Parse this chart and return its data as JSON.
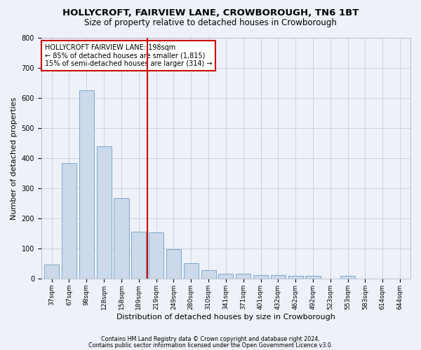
{
  "title": "HOLLYCROFT, FAIRVIEW LANE, CROWBOROUGH, TN6 1BT",
  "subtitle": "Size of property relative to detached houses in Crowborough",
  "xlabel": "Distribution of detached houses by size in Crowborough",
  "ylabel": "Number of detached properties",
  "categories": [
    "37sqm",
    "67sqm",
    "98sqm",
    "128sqm",
    "158sqm",
    "189sqm",
    "219sqm",
    "249sqm",
    "280sqm",
    "310sqm",
    "341sqm",
    "371sqm",
    "401sqm",
    "432sqm",
    "462sqm",
    "492sqm",
    "523sqm",
    "553sqm",
    "583sqm",
    "614sqm",
    "644sqm"
  ],
  "values": [
    47,
    383,
    625,
    440,
    268,
    155,
    153,
    97,
    52,
    28,
    15,
    15,
    11,
    11,
    10,
    9,
    0,
    8,
    0,
    0,
    0
  ],
  "bar_color": "#ccd9ea",
  "bar_edge_color": "#6b9ec8",
  "bar_width": 0.85,
  "vline_x": 6.0,
  "vline_color": "#cc0000",
  "annotation_text": "HOLLYCROFT FAIRVIEW LANE: 198sqm\n← 85% of detached houses are smaller (1,815)\n15% of semi-detached houses are larger (314) →",
  "annotation_box_edge": "#cc0000",
  "ylim": [
    0,
    800
  ],
  "yticks": [
    0,
    100,
    200,
    300,
    400,
    500,
    600,
    700,
    800
  ],
  "footer1": "Contains HM Land Registry data © Crown copyright and database right 2024.",
  "footer2": "Contains public sector information licensed under the Open Government Licence v3.0.",
  "bg_color": "#eef2f8",
  "plot_bg_color": "#eef2f8",
  "grid_color": "#c5ccd8",
  "title_fontsize": 9.5,
  "subtitle_fontsize": 8.5,
  "tick_fontsize": 6.5,
  "ylabel_fontsize": 8,
  "xlabel_fontsize": 8,
  "annotation_fontsize": 7.0
}
